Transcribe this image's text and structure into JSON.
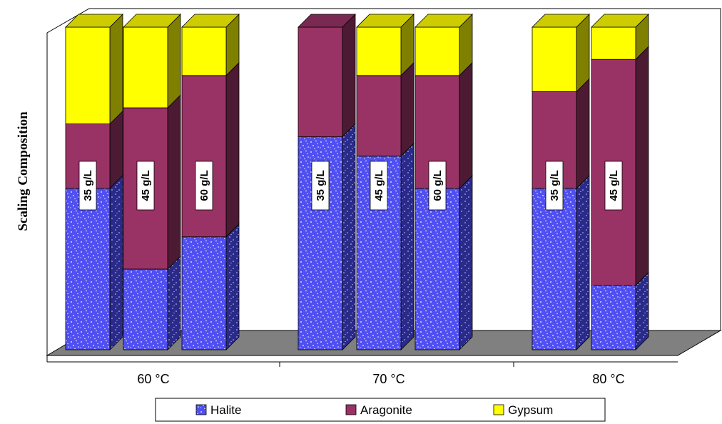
{
  "chart_data": {
    "type": "bar",
    "stacked": true,
    "normalized": true,
    "three_d": true,
    "title": "",
    "xlabel": "",
    "ylabel": "Scaling Composition",
    "ylim": [
      0,
      1
    ],
    "grid": false,
    "legend_position": "bottom",
    "categories": [
      "60 °C",
      "70 °C",
      "80 °C"
    ],
    "series": [
      {
        "name": "Halite",
        "color": "#4f4ff2"
      },
      {
        "name": "Aragonite",
        "color": "#993366"
      },
      {
        "name": "Gypsum",
        "color": "#ffff00"
      }
    ],
    "groups": [
      {
        "category": "60 °C",
        "bars": [
          {
            "label": "35 g/L",
            "halite": 0.5,
            "aragonite": 0.2,
            "gypsum": 0.3
          },
          {
            "label": "45 g/L",
            "halite": 0.25,
            "aragonite": 0.5,
            "gypsum": 0.25
          },
          {
            "label": "60 g/L",
            "halite": 0.35,
            "aragonite": 0.5,
            "gypsum": 0.15
          }
        ]
      },
      {
        "category": "70 °C",
        "bars": [
          {
            "label": "35 g/L",
            "halite": 0.66,
            "aragonite": 0.34,
            "gypsum": 0.0
          },
          {
            "label": "45 g/L",
            "halite": 0.6,
            "aragonite": 0.25,
            "gypsum": 0.15
          },
          {
            "label": "60 g/L",
            "halite": 0.5,
            "aragonite": 0.35,
            "gypsum": 0.15
          }
        ]
      },
      {
        "category": "80 °C",
        "bars": [
          {
            "label": "35 g/L",
            "halite": 0.5,
            "aragonite": 0.3,
            "gypsum": 0.2
          },
          {
            "label": "45 g/L",
            "halite": 0.2,
            "aragonite": 0.7,
            "gypsum": 0.1
          }
        ]
      }
    ]
  }
}
